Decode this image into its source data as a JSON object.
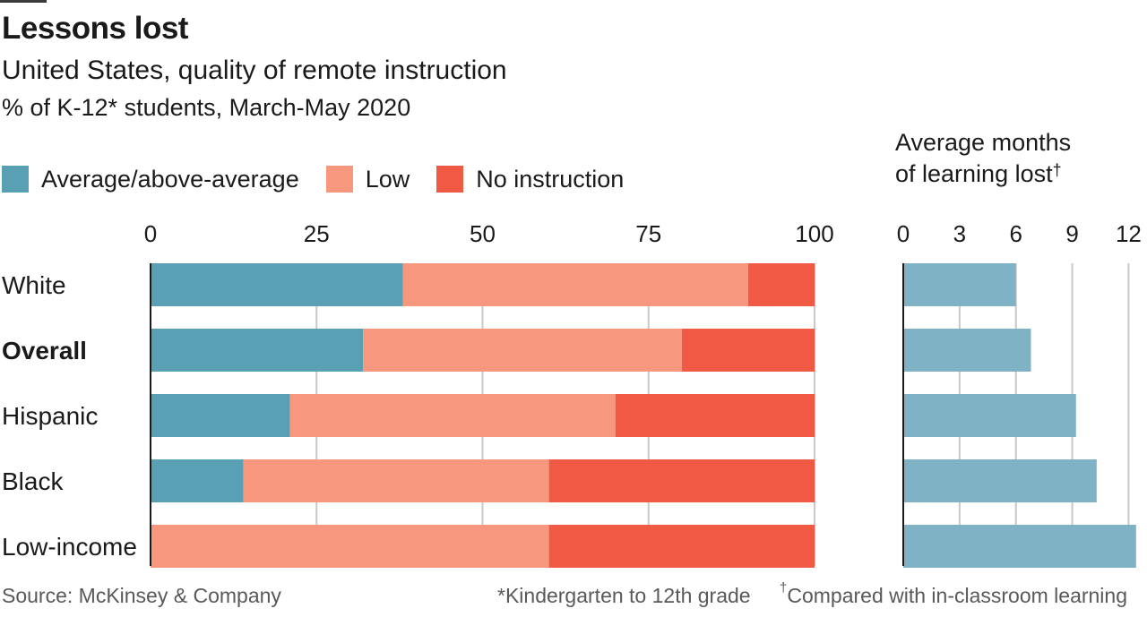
{
  "title": "Lessons lost",
  "subtitle": "United States, quality of remote instruction",
  "subsubtitle": "% of K-12* students, March-May 2020",
  "legend": [
    {
      "label": "Average/above-average",
      "color": "#5aa0b4"
    },
    {
      "label": "Low",
      "color": "#f7987e"
    },
    {
      "label": "No instruction",
      "color": "#f05a44"
    }
  ],
  "right_title": {
    "line1": "Average months",
    "line2": "of learning lost",
    "mark": "†"
  },
  "footer": {
    "source": "Source: McKinsey & Company",
    "note1": "*Kindergarten to 12th grade",
    "note2_mark": "†",
    "note2": "Compared with in-classroom learning"
  },
  "chart_data": [
    {
      "type": "bar",
      "orientation": "horizontal",
      "stacked": true,
      "categories": [
        "White",
        "Overall",
        "Hispanic",
        "Black",
        "Low-income"
      ],
      "bold_categories": [
        "Overall"
      ],
      "series": [
        {
          "name": "Average/above-average",
          "values": [
            38,
            32,
            21,
            14,
            0
          ],
          "color": "#5aa0b4"
        },
        {
          "name": "Low",
          "values": [
            52,
            48,
            49,
            46,
            60
          ],
          "color": "#f7987e"
        },
        {
          "name": "No instruction",
          "values": [
            10,
            20,
            30,
            40,
            40
          ],
          "color": "#f05a44"
        }
      ],
      "xlim": [
        0,
        100
      ],
      "xticks": [
        "0",
        "25",
        "50",
        "75",
        "100"
      ],
      "grid": true
    },
    {
      "type": "bar",
      "orientation": "horizontal",
      "categories": [
        "White",
        "Overall",
        "Hispanic",
        "Black",
        "Low-income"
      ],
      "values": [
        6.0,
        6.8,
        9.2,
        10.3,
        12.4
      ],
      "color": "#7fb2c4",
      "xlim": [
        0,
        12.6
      ],
      "xticks": [
        "0",
        "3",
        "6",
        "9",
        "12"
      ],
      "grid": true
    }
  ]
}
